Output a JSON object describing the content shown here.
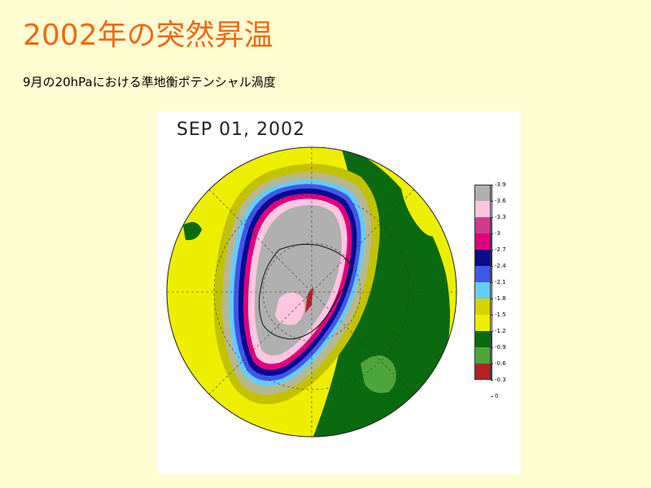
{
  "slide": {
    "title": "2002年の突然昇温",
    "subtitle": "9月の20hPaにおける準地衡ポテンシャル渦度"
  },
  "map": {
    "date": "SEP 01, 2002",
    "projection": "south-polar-stereographic",
    "colors": {
      "ocean_far": "#eeee00",
      "mid_outer": "#b9b900",
      "gray_band": "#b8b890",
      "blue_light": "#66ccff",
      "blue_mid": "#3f57e9",
      "navy": "#070793",
      "magenta": "#e0007a",
      "pink_light": "#ffc6e0",
      "gray_core": "#b0b0b0",
      "green_dark": "#0a6a10",
      "green_light": "#4ea53a"
    }
  },
  "colorbar": {
    "labels": [
      "-3.9",
      "-3.6",
      "-3.3",
      "-3",
      "-2.7",
      "-2.4",
      "-2.1",
      "-1.8",
      "-1.5",
      "-1.2",
      "-0.9",
      "-0.6",
      "-0.3",
      "0"
    ],
    "colors": [
      "#b0b0b0",
      "#ffc6e0",
      "#d03b8a",
      "#e0007a",
      "#0a0a8a",
      "#3f57e9",
      "#66ccff",
      "#d4d400",
      "#eeee00",
      "#0a6a10",
      "#4ea53a",
      "#b22222"
    ]
  }
}
